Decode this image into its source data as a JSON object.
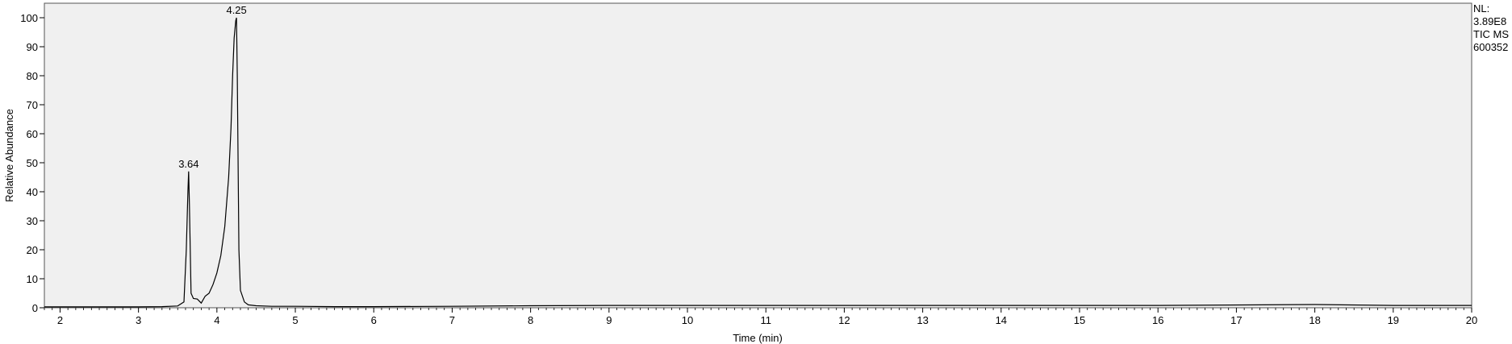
{
  "chart_data": {
    "type": "line",
    "title": "",
    "xlabel": "Time (min)",
    "ylabel": "Relative Abundance",
    "xlim": [
      1.8,
      20
    ],
    "ylim": [
      0,
      100
    ],
    "x_ticks": [
      2,
      3,
      4,
      5,
      6,
      7,
      8,
      9,
      10,
      11,
      12,
      13,
      14,
      15,
      16,
      17,
      18,
      19,
      20
    ],
    "y_ticks": [
      0,
      10,
      20,
      30,
      40,
      50,
      60,
      70,
      80,
      90,
      100
    ],
    "grid": false,
    "legend": "none",
    "series": [
      {
        "x": [
          1.8,
          2.5,
          3.0,
          3.3,
          3.5,
          3.58,
          3.61,
          3.63,
          3.64,
          3.65,
          3.67,
          3.7,
          3.75,
          3.8,
          3.85,
          3.9,
          3.95,
          4.0,
          4.05,
          4.1,
          4.15,
          4.18,
          4.2,
          4.22,
          4.24,
          4.25,
          4.26,
          4.28,
          4.3,
          4.35,
          4.4,
          4.5,
          4.7,
          5.0,
          5.5,
          6.0,
          7.0,
          8.0,
          9.0,
          10.0,
          12.0,
          14.0,
          16.0,
          18.0,
          19.0,
          20.0
        ],
        "y": [
          0.3,
          0.3,
          0.3,
          0.4,
          0.6,
          2,
          20,
          40,
          47,
          35,
          5,
          3.2,
          3,
          1.6,
          4,
          5,
          8,
          12,
          18,
          28,
          45,
          62,
          80,
          93,
          99,
          100,
          80,
          20,
          6,
          2,
          1,
          0.7,
          0.5,
          0.5,
          0.4,
          0.4,
          0.5,
          0.7,
          0.8,
          0.8,
          0.8,
          0.8,
          0.8,
          1.1,
          0.8,
          0.8
        ]
      }
    ],
    "annotations": [
      {
        "text": "3.64",
        "x": 3.64,
        "y": 47
      },
      {
        "text": "4.25",
        "x": 4.25,
        "y": 100
      }
    ],
    "info_lines": [
      "NL:",
      "3.89E8",
      "TIC  MS",
      "600352"
    ],
    "line_color": "#000000",
    "plot_background": "#f0f0f0"
  }
}
